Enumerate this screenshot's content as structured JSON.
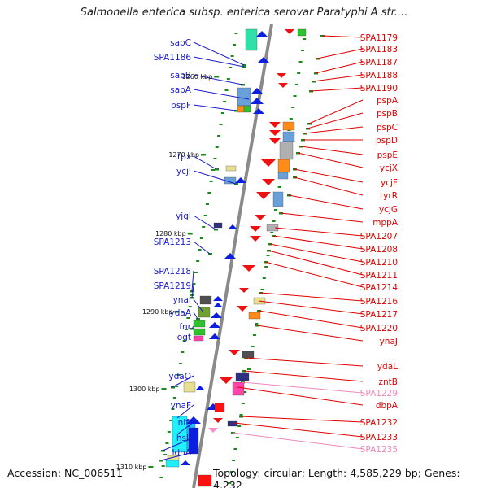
{
  "title": "Salmonella enterica subsp. enterica serovar Paratyphi A str....",
  "accession": "Accession: NC_006511",
  "summary": "Topology: circular; Length: 4,585,229 bp; Genes: 4,232",
  "colors": {
    "left_label": "#1a1acc",
    "right_label": "#e00000",
    "pseudo_label": "#ee88bb",
    "backbone": "#888888",
    "left_gene": "#0a1fe0",
    "right_gene": "#ee1111",
    "tick": "#1a8a1a"
  },
  "kbp_marks": [
    "1260 kbp",
    "1270 kbp",
    "1280 kbp",
    "1290 kbp",
    "1300 kbp",
    "1310 kbp"
  ],
  "left_labels": [
    "sapC",
    "SPA1186",
    "sapB",
    "sapA",
    "pspF",
    "tpx",
    "ycjI",
    "yjgI",
    "SPA1213",
    "SPA1218",
    "SPA1219",
    "ynaI",
    "ydaA",
    "fnr",
    "ogt",
    "ydaO",
    "ynaF",
    "nifJ",
    "hslJ",
    "ldhA"
  ],
  "right_labels": [
    "SPA1179",
    "SPA1183",
    "SPA1187",
    "SPA1188",
    "SPA1190",
    "pspA",
    "pspB",
    "pspC",
    "pspD",
    "pspE",
    "ycjX",
    "ycjF",
    "tyrR",
    "ycjG",
    "mppA",
    "SPA1207",
    "SPA1208",
    "SPA1210",
    "SPA1211",
    "SPA1214",
    "SPA1216",
    "SPA1217",
    "SPA1220",
    "ynaJ",
    "ydaL",
    "zntB",
    "SPA1229",
    "dbpA",
    "SPA1232",
    "SPA1233",
    "SPA1235"
  ],
  "pseudo_right": [
    "SPA1229",
    "SPA1235"
  ]
}
